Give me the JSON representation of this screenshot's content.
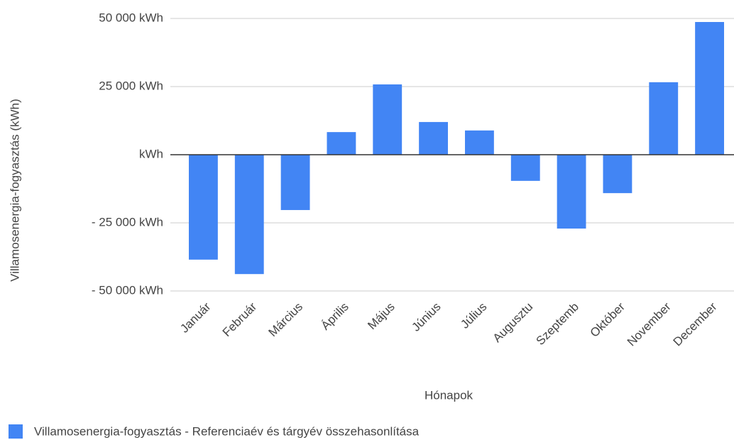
{
  "chart_data": {
    "type": "bar",
    "x_label": "Hónapok",
    "y_label": "Villamosenergia-fogyasztás (kWh)",
    "categories": [
      "Január",
      "Február",
      "Március",
      "Április",
      "Május",
      "Június",
      "Július",
      "Augusztu",
      "Szeptemb",
      "Október",
      "November",
      "December"
    ],
    "series": [
      {
        "name": "Villamosenergia-fogyasztás - Referenciaév és tárgyév összehasonlítása",
        "color": "#4285f4",
        "values": [
          -38500,
          -43800,
          -20300,
          8300,
          25800,
          12000,
          8900,
          -9600,
          -27100,
          -14100,
          26600,
          48700
        ]
      }
    ],
    "ylim": [
      -50000,
      50000
    ],
    "yticks": [
      {
        "value": -50000,
        "label": "- 50 000 kWh"
      },
      {
        "value": -25000,
        "label": "- 25 000 kWh"
      },
      {
        "value": 0,
        "label": "kWh"
      },
      {
        "value": 25000,
        "label": "25 000 kWh"
      },
      {
        "value": 50000,
        "label": "50 000 kWh"
      }
    ],
    "grid": true,
    "legend": "bottom"
  }
}
